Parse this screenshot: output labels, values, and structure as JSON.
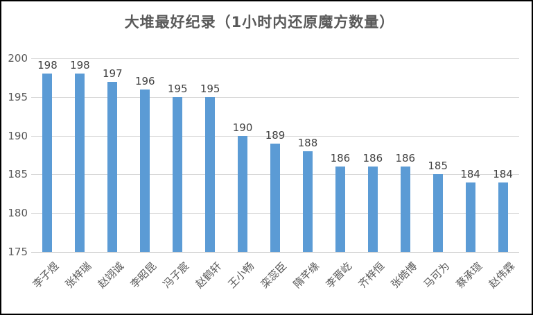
{
  "chart_data": {
    "type": "bar",
    "title": "大堆最好纪录（1小时内还原魔方数量）",
    "categories": [
      "李子煜",
      "张梓瑞",
      "赵翊诚",
      "李昭昆",
      "冯子宸",
      "赵鹤轩",
      "王小畅",
      "栾蕊臣",
      "隋芊缘",
      "李晋屹",
      "齐梓恒",
      "张皓博",
      "马可为",
      "蔡承瑄",
      "赵伟霖"
    ],
    "values": [
      198,
      198,
      197,
      196,
      195,
      195,
      190,
      189,
      188,
      186,
      186,
      186,
      185,
      184,
      184
    ],
    "xlabel": "",
    "ylabel": "",
    "ylim": [
      175,
      200
    ],
    "yticks": [
      200,
      195,
      190,
      185,
      180,
      175
    ],
    "grid": true,
    "legend_position": "none",
    "bar_color": "#5b9bd5",
    "gridline_color": "#d9d9d9",
    "axis_line_color": "#bfbfbf",
    "axis_label_color": "#595959",
    "data_label_color": "#404040",
    "title_color": "#595959",
    "background_color": "#ffffff",
    "border_color": "#000000"
  }
}
